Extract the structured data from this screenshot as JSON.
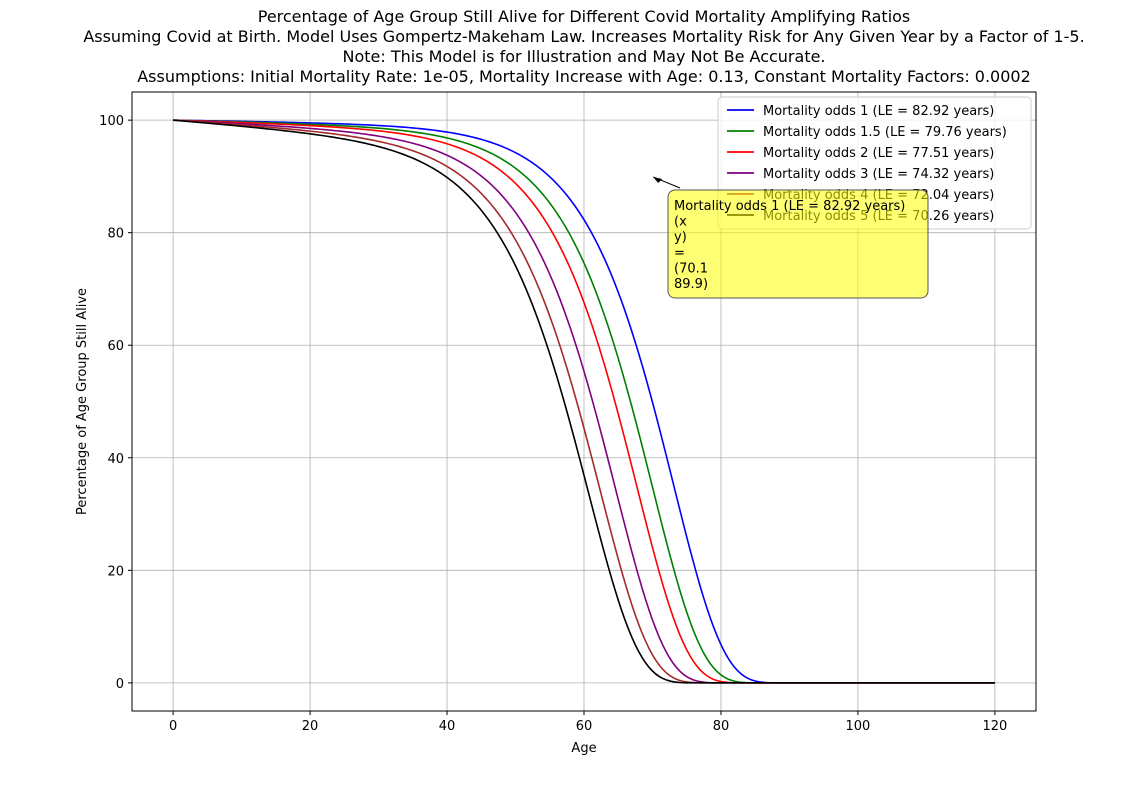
{
  "chart_data": {
    "type": "line",
    "title_lines": [
      "Percentage of Age Group Still Alive for Different Covid Mortality Amplifying Ratios",
      "Assuming Covid at Birth. Model Uses Gompertz-Makeham Law. Increases Mortality Risk for Any Given Year by a Factor of 1-5.",
      "Note: This Model is for Illustration and May Not Be Accurate.",
      "Assumptions: Initial Mortality Rate: 1e-05, Mortality Increase with Age: 0.13, Constant Mortality Factors: 0.0002"
    ],
    "xlabel": "Age",
    "ylabel": "Percentage of Age Group Still Alive",
    "xlim": [
      -6,
      126
    ],
    "ylim": [
      -5,
      105
    ],
    "x_ticks": [
      0,
      20,
      40,
      60,
      80,
      100,
      120
    ],
    "y_ticks": [
      0,
      20,
      40,
      60,
      80,
      100
    ],
    "grid": true,
    "legend_position": "top-right",
    "model": {
      "initial_mortality_rate": 1e-05,
      "mortality_increase_with_age": 0.13,
      "constant_mortality_factor": 0.0002,
      "age_start": 0,
      "age_end": 120
    },
    "series": [
      {
        "name": "Mortality odds 1 (LE = 82.92 years)",
        "factor": 1,
        "color": "#0000ff"
      },
      {
        "name": "Mortality odds 1.5 (LE = 79.76 years)",
        "factor": 1.5,
        "color": "#008000"
      },
      {
        "name": "Mortality odds 2 (LE = 77.51 years)",
        "factor": 2,
        "color": "#ff0000"
      },
      {
        "name": "Mortality odds 3 (LE = 74.32 years)",
        "factor": 3,
        "color": "#800080"
      },
      {
        "name": "Mortality odds 4 (LE = 72.04 years)",
        "factor": 4,
        "color": "#a52a2a"
      },
      {
        "name": "Mortality odds 5 (LE = 70.26 years)",
        "factor": 5,
        "color": "#000000"
      }
    ],
    "annotation": {
      "lines": [
        "Mortality odds 1 (LE = 82.92 years)",
        "(x",
        "y)",
        "=",
        "(70.1",
        "89.9)"
      ],
      "target_x": 70.1,
      "target_y": 89.9,
      "box_color": "#ffff00"
    }
  }
}
